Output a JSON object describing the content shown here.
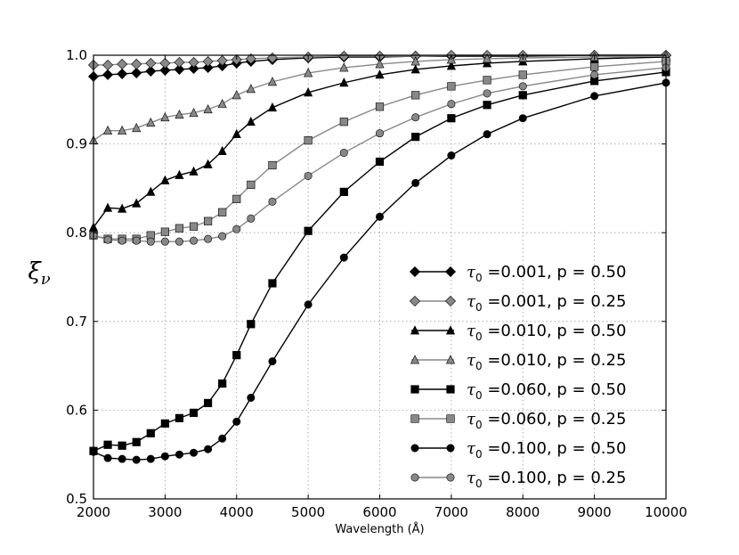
{
  "chart_data": {
    "type": "line",
    "title": "",
    "xlabel": "Wavelength (Å)",
    "ylabel": "ξν",
    "xlim": [
      2000,
      10000
    ],
    "ylim": [
      0.5,
      1.0
    ],
    "xticks": [
      2000,
      3000,
      4000,
      5000,
      6000,
      7000,
      8000,
      9000,
      10000
    ],
    "yticks": [
      0.5,
      0.6,
      0.7,
      0.8,
      0.9,
      1.0
    ],
    "xtick_labels": [
      "2000",
      "3000",
      "4000",
      "5000",
      "6000",
      "7000",
      "8000",
      "9000",
      "10000"
    ],
    "ytick_labels": [
      "0.5",
      "0.6",
      "0.7",
      "0.8",
      "0.9",
      "1.0"
    ],
    "grid": true,
    "legend_position": "lower-right",
    "series": [
      {
        "name": "τ0 =0.001, p = 0.50",
        "label_main": "τ",
        "label_sub": "0",
        "label_rest": " =0.001, p = 0.50",
        "marker": "diamond",
        "color": "#000000",
        "x": [
          2000,
          2200,
          2400,
          2600,
          2800,
          3000,
          3200,
          3400,
          3600,
          3800,
          4000,
          4200,
          4500,
          5000,
          5500,
          6000,
          6500,
          7000,
          7500,
          8000,
          9000,
          10000
        ],
        "y": [
          0.976,
          0.978,
          0.979,
          0.98,
          0.982,
          0.983,
          0.984,
          0.985,
          0.986,
          0.988,
          0.991,
          0.993,
          0.995,
          0.997,
          0.998,
          0.998,
          0.999,
          0.999,
          0.999,
          0.999,
          1.0,
          1.0
        ]
      },
      {
        "name": "τ0 =0.001, p = 0.25",
        "label_main": "τ",
        "label_sub": "0",
        "label_rest": " =0.001, p = 0.25",
        "marker": "diamond",
        "color": "#888888",
        "x": [
          2000,
          2200,
          2400,
          2600,
          2800,
          3000,
          3200,
          3400,
          3600,
          3800,
          4000,
          4200,
          4500,
          5000,
          5500,
          6000,
          6500,
          7000,
          7500,
          8000,
          9000,
          10000
        ],
        "y": [
          0.989,
          0.989,
          0.99,
          0.99,
          0.991,
          0.991,
          0.992,
          0.992,
          0.993,
          0.994,
          0.995,
          0.996,
          0.997,
          0.998,
          0.999,
          0.999,
          0.999,
          1.0,
          1.0,
          1.0,
          1.0,
          1.0
        ]
      },
      {
        "name": "τ0 =0.010, p = 0.50",
        "label_main": "τ",
        "label_sub": "0",
        "label_rest": " =0.010, p = 0.50",
        "marker": "triangle",
        "color": "#000000",
        "x": [
          2000,
          2200,
          2400,
          2600,
          2800,
          3000,
          3200,
          3400,
          3600,
          3800,
          4000,
          4200,
          4500,
          5000,
          5500,
          6000,
          6500,
          7000,
          7500,
          8000,
          9000,
          10000
        ],
        "y": [
          0.806,
          0.828,
          0.827,
          0.833,
          0.846,
          0.859,
          0.865,
          0.869,
          0.877,
          0.892,
          0.911,
          0.925,
          0.941,
          0.958,
          0.969,
          0.978,
          0.984,
          0.988,
          0.991,
          0.993,
          0.996,
          0.998
        ]
      },
      {
        "name": "τ0 =0.010, p = 0.25",
        "label_main": "τ",
        "label_sub": "0",
        "label_rest": " =0.010, p = 0.25",
        "marker": "triangle",
        "color": "#888888",
        "x": [
          2000,
          2200,
          2400,
          2600,
          2800,
          3000,
          3200,
          3400,
          3600,
          3800,
          4000,
          4200,
          4500,
          5000,
          5500,
          6000,
          6500,
          7000,
          7500,
          8000,
          9000,
          10000
        ],
        "y": [
          0.904,
          0.915,
          0.915,
          0.918,
          0.924,
          0.93,
          0.933,
          0.935,
          0.939,
          0.945,
          0.955,
          0.962,
          0.97,
          0.98,
          0.986,
          0.99,
          0.993,
          0.995,
          0.996,
          0.997,
          0.998,
          0.999
        ]
      },
      {
        "name": "τ0 =0.060, p = 0.50",
        "label_main": "τ",
        "label_sub": "0",
        "label_rest": " =0.060, p = 0.50",
        "marker": "square",
        "color": "#000000",
        "x": [
          2000,
          2200,
          2400,
          2600,
          2800,
          3000,
          3200,
          3400,
          3600,
          3800,
          4000,
          4200,
          4500,
          5000,
          5500,
          6000,
          6500,
          7000,
          7500,
          8000,
          9000,
          10000
        ],
        "y": [
          0.554,
          0.561,
          0.56,
          0.564,
          0.574,
          0.585,
          0.591,
          0.597,
          0.608,
          0.63,
          0.662,
          0.697,
          0.743,
          0.802,
          0.846,
          0.88,
          0.908,
          0.929,
          0.944,
          0.955,
          0.971,
          0.981
        ]
      },
      {
        "name": "τ0 =0.060, p = 0.25",
        "label_main": "τ",
        "label_sub": "0",
        "label_rest": " =0.060, p = 0.25",
        "marker": "square",
        "color": "#888888",
        "x": [
          2000,
          2200,
          2400,
          2600,
          2800,
          3000,
          3200,
          3400,
          3600,
          3800,
          4000,
          4200,
          4500,
          5000,
          5500,
          6000,
          6500,
          7000,
          7500,
          8000,
          9000,
          10000
        ],
        "y": [
          0.797,
          0.793,
          0.793,
          0.793,
          0.797,
          0.801,
          0.805,
          0.807,
          0.813,
          0.823,
          0.838,
          0.854,
          0.876,
          0.904,
          0.925,
          0.942,
          0.955,
          0.965,
          0.972,
          0.978,
          0.987,
          0.993
        ]
      },
      {
        "name": "τ0 =0.100, p = 0.50",
        "label_main": "τ",
        "label_sub": "0",
        "label_rest": " =0.100, p = 0.50",
        "marker": "circle",
        "color": "#000000",
        "x": [
          2000,
          2200,
          2400,
          2600,
          2800,
          3000,
          3200,
          3400,
          3600,
          3800,
          4000,
          4200,
          4500,
          5000,
          5500,
          6000,
          6500,
          7000,
          7500,
          8000,
          9000,
          10000
        ],
        "y": [
          0.553,
          0.546,
          0.545,
          0.544,
          0.545,
          0.548,
          0.55,
          0.552,
          0.556,
          0.568,
          0.587,
          0.614,
          0.655,
          0.719,
          0.772,
          0.818,
          0.856,
          0.887,
          0.911,
          0.929,
          0.954,
          0.969
        ]
      },
      {
        "name": "τ0 =0.100, p = 0.25",
        "label_main": "τ",
        "label_sub": "0",
        "label_rest": " =0.100, p = 0.25",
        "marker": "circle",
        "color": "#888888",
        "x": [
          2000,
          2200,
          2400,
          2600,
          2800,
          3000,
          3200,
          3400,
          3600,
          3800,
          4000,
          4200,
          4500,
          5000,
          5500,
          6000,
          6500,
          7000,
          7500,
          8000,
          9000,
          10000
        ],
        "y": [
          0.797,
          0.792,
          0.791,
          0.791,
          0.79,
          0.79,
          0.79,
          0.791,
          0.793,
          0.796,
          0.804,
          0.816,
          0.835,
          0.864,
          0.89,
          0.912,
          0.93,
          0.945,
          0.957,
          0.965,
          0.978,
          0.986
        ]
      }
    ]
  }
}
